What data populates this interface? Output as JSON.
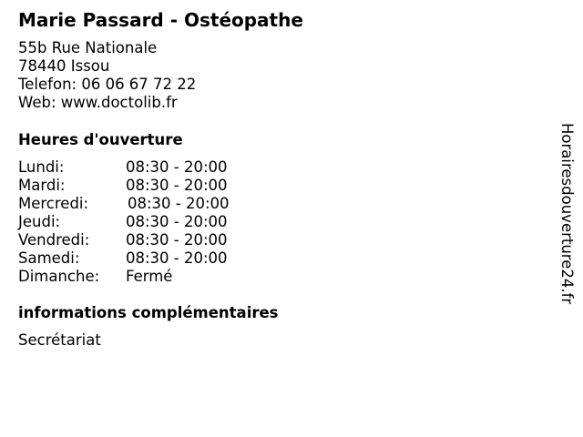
{
  "title": "Marie Passard - Ostéopathe",
  "address": {
    "street": "55b Rue Nationale",
    "city": "78440 Issou",
    "phone": "Telefon: 06 06 67 72 22",
    "web": "Web: www.doctolib.fr"
  },
  "hours": {
    "heading": "Heures d'ouverture",
    "rows": [
      {
        "day": "Lundi:",
        "time": "08:30 - 20:00"
      },
      {
        "day": "Mardi:",
        "time": "08:30 - 20:00"
      },
      {
        "day": "Mercredi:",
        "time": "08:30 - 20:00"
      },
      {
        "day": "Jeudi:",
        "time": "08:30 - 20:00"
      },
      {
        "day": "Vendredi:",
        "time": "08:30 - 20:00"
      },
      {
        "day": "Samedi:",
        "time": "08:30 - 20:00"
      },
      {
        "day": "Dimanche:",
        "time": "Fermé"
      }
    ]
  },
  "extra": {
    "heading": "informations complémentaires",
    "text": "Secrétariat"
  },
  "watermark": "Horairesdouverture24.fr"
}
